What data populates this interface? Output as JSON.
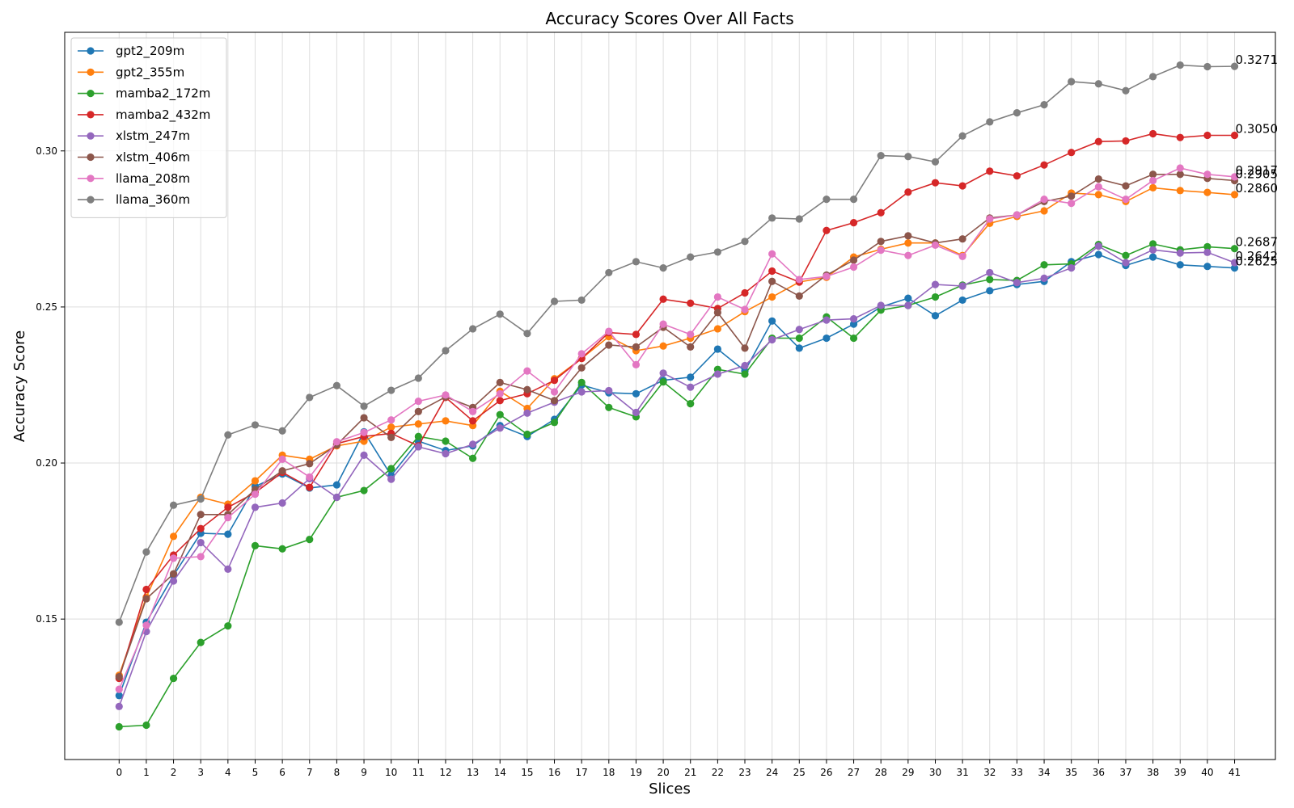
{
  "chart_data": {
    "type": "line",
    "title": "Accuracy Scores Over All Facts",
    "xlabel": "Slices",
    "ylabel": "Accuracy Score",
    "xlim": [
      -2,
      42.5
    ],
    "ylim": [
      0.105,
      0.338
    ],
    "yticks": [
      "0.15",
      "0.20",
      "0.25",
      "0.30"
    ],
    "grid": true,
    "legend_position": "top-left",
    "x": [
      0,
      1,
      2,
      3,
      4,
      5,
      6,
      7,
      8,
      9,
      10,
      11,
      12,
      13,
      14,
      15,
      16,
      17,
      18,
      19,
      20,
      21,
      22,
      23,
      24,
      25,
      26,
      27,
      28,
      29,
      30,
      31,
      32,
      33,
      34,
      35,
      36,
      37,
      38,
      39,
      40,
      41
    ],
    "series": [
      {
        "name": "gpt2_209m",
        "color": "#1f77b4",
        "end_label": "0.2625",
        "values": [
          0.1255,
          0.149,
          0.164,
          0.1775,
          0.1772,
          0.1925,
          0.1965,
          0.192,
          0.193,
          0.21,
          0.196,
          0.207,
          0.204,
          0.2055,
          0.212,
          0.2085,
          0.214,
          0.225,
          0.2225,
          0.2222,
          0.2265,
          0.2275,
          0.2365,
          0.2295,
          0.2455,
          0.2368,
          0.24,
          0.2445,
          0.25,
          0.2528,
          0.2472,
          0.2522,
          0.2552,
          0.2572,
          0.2582,
          0.2645,
          0.2668,
          0.2633,
          0.266,
          0.2635,
          0.263,
          0.2625
        ]
      },
      {
        "name": "gpt2_355m",
        "color": "#ff7f0e",
        "end_label": "0.2860",
        "values": [
          0.132,
          0.157,
          0.1765,
          0.189,
          0.1868,
          0.1943,
          0.2025,
          0.2012,
          0.2055,
          0.207,
          0.2115,
          0.2125,
          0.2135,
          0.212,
          0.223,
          0.2175,
          0.227,
          0.2335,
          0.2405,
          0.236,
          0.2375,
          0.24,
          0.243,
          0.2485,
          0.2532,
          0.258,
          0.2595,
          0.266,
          0.2685,
          0.2705,
          0.2705,
          0.2665,
          0.2768,
          0.279,
          0.2808,
          0.2865,
          0.286,
          0.2838,
          0.2882,
          0.2873,
          0.2867,
          0.286
        ]
      },
      {
        "name": "mamba2_172m",
        "color": "#2ca02c",
        "end_label": "0.2687",
        "values": [
          0.1155,
          0.116,
          0.131,
          0.1425,
          0.1478,
          0.1735,
          0.1725,
          0.1755,
          0.189,
          0.1912,
          0.1982,
          0.2085,
          0.207,
          0.2015,
          0.2155,
          0.2092,
          0.213,
          0.2258,
          0.2178,
          0.2148,
          0.226,
          0.219,
          0.23,
          0.2285,
          0.24,
          0.24,
          0.2468,
          0.24,
          0.249,
          0.2505,
          0.2532,
          0.257,
          0.2588,
          0.2585,
          0.2635,
          0.2638,
          0.27,
          0.2665,
          0.2702,
          0.2683,
          0.2693,
          0.2687
        ]
      },
      {
        "name": "mamba2_432m",
        "color": "#d62728",
        "end_label": "0.3050",
        "values": [
          0.131,
          0.1595,
          0.1705,
          0.179,
          0.1858,
          0.1905,
          0.197,
          0.1922,
          0.2062,
          0.2085,
          0.2095,
          0.2055,
          0.221,
          0.2135,
          0.22,
          0.2222,
          0.2265,
          0.2335,
          0.2418,
          0.2412,
          0.2525,
          0.2512,
          0.2495,
          0.2545,
          0.2615,
          0.258,
          0.2745,
          0.277,
          0.2802,
          0.2868,
          0.2898,
          0.2888,
          0.2935,
          0.292,
          0.2955,
          0.2995,
          0.303,
          0.3032,
          0.3055,
          0.3043,
          0.305,
          0.305
        ]
      },
      {
        "name": "xlstm_247m",
        "color": "#9467bd",
        "end_label": "0.2642",
        "values": [
          0.122,
          0.146,
          0.1622,
          0.1745,
          0.166,
          0.1858,
          0.1872,
          0.195,
          0.189,
          0.2025,
          0.1948,
          0.2052,
          0.203,
          0.206,
          0.2112,
          0.216,
          0.2195,
          0.2228,
          0.2232,
          0.2162,
          0.2288,
          0.2243,
          0.2285,
          0.2312,
          0.2395,
          0.2428,
          0.2458,
          0.2462,
          0.2505,
          0.2505,
          0.2572,
          0.2567,
          0.261,
          0.2578,
          0.2592,
          0.2625,
          0.2695,
          0.2642,
          0.2683,
          0.2673,
          0.2675,
          0.2642
        ]
      },
      {
        "name": "xlstm_406m",
        "color": "#8c564b",
        "end_label": "0.2905",
        "values": [
          0.1315,
          0.1565,
          0.1645,
          0.1835,
          0.1835,
          0.1915,
          0.1975,
          0.1998,
          0.2058,
          0.2145,
          0.2082,
          0.2165,
          0.2212,
          0.2178,
          0.2258,
          0.2235,
          0.22,
          0.2305,
          0.2378,
          0.2372,
          0.2435,
          0.2372,
          0.2482,
          0.2368,
          0.2582,
          0.2535,
          0.2602,
          0.265,
          0.271,
          0.2728,
          0.2705,
          0.2718,
          0.2785,
          0.2795,
          0.2838,
          0.2855,
          0.291,
          0.2888,
          0.2925,
          0.2925,
          0.2912,
          0.2905
        ]
      },
      {
        "name": "llama_208m",
        "color": "#e377c2",
        "end_label": "0.2917",
        "values": [
          0.1275,
          0.148,
          0.1695,
          0.17,
          0.1825,
          0.19,
          0.2012,
          0.1955,
          0.2068,
          0.2098,
          0.2138,
          0.2198,
          0.2218,
          0.2165,
          0.2222,
          0.2295,
          0.2228,
          0.235,
          0.2422,
          0.2315,
          0.2445,
          0.2412,
          0.2532,
          0.2492,
          0.267,
          0.2588,
          0.2598,
          0.2628,
          0.2682,
          0.2665,
          0.2698,
          0.2662,
          0.2782,
          0.2795,
          0.2845,
          0.2832,
          0.2885,
          0.2845,
          0.2905,
          0.2945,
          0.2925,
          0.2917
        ]
      },
      {
        "name": "llama_360m",
        "color": "#7f7f7f",
        "end_label": "0.3271",
        "values": [
          0.149,
          0.1715,
          0.1865,
          0.1885,
          0.209,
          0.2122,
          0.2103,
          0.221,
          0.2248,
          0.2182,
          0.2233,
          0.2272,
          0.236,
          0.243,
          0.2477,
          0.2415,
          0.2518,
          0.2522,
          0.261,
          0.2645,
          0.2625,
          0.266,
          0.2676,
          0.271,
          0.2785,
          0.2782,
          0.2845,
          0.2845,
          0.2985,
          0.2982,
          0.2965,
          0.3048,
          0.3093,
          0.3122,
          0.3148,
          0.3222,
          0.3215,
          0.3193,
          0.3238,
          0.3275,
          0.327,
          0.3271
        ]
      }
    ]
  }
}
